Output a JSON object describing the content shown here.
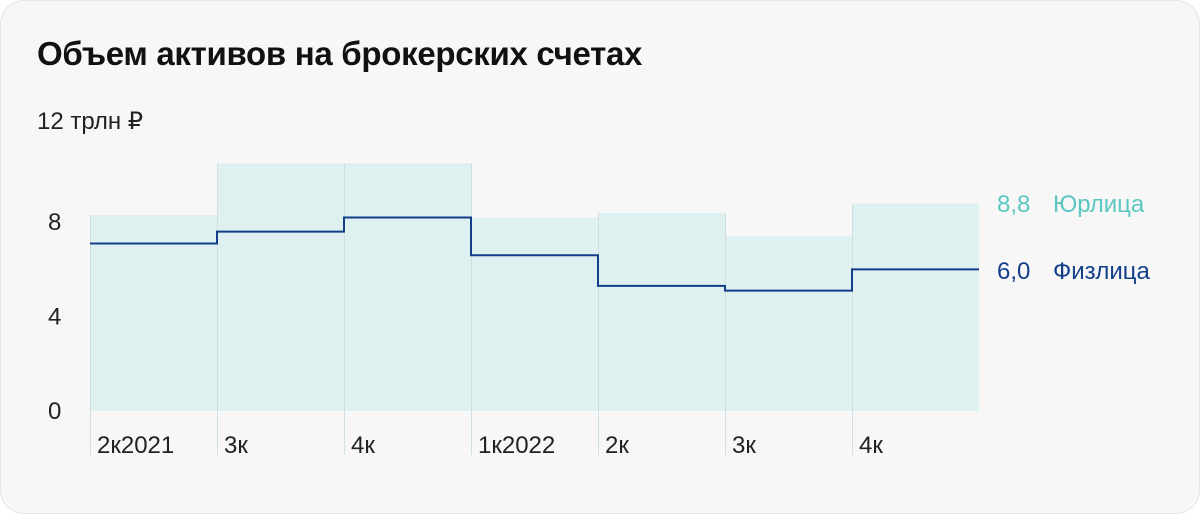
{
  "title": "Объем активов на брокерских счетах",
  "y_top_label": "12 трлн ₽",
  "colors": {
    "legal": "#5cc6c0",
    "legal_fill": "#dff0f0",
    "individual": "#133f8a",
    "divider": "#cfe0e0"
  },
  "chart_data": {
    "type": "area",
    "categories": [
      "2к2021",
      "3к",
      "4к",
      "1к2022",
      "2к",
      "3к",
      "4к"
    ],
    "ylim": [
      0,
      12
    ],
    "yticks": [
      "0",
      "4",
      "8"
    ],
    "series": [
      {
        "name": "Юрлица",
        "values": [
          8.3,
          10.5,
          10.5,
          8.2,
          8.4,
          7.4,
          8.8
        ],
        "end_label": "8,8"
      },
      {
        "name": "Физлица",
        "values": [
          7.1,
          7.6,
          8.2,
          6.6,
          5.3,
          5.1,
          6.0
        ],
        "end_label": "6,0"
      }
    ],
    "grid": false
  }
}
